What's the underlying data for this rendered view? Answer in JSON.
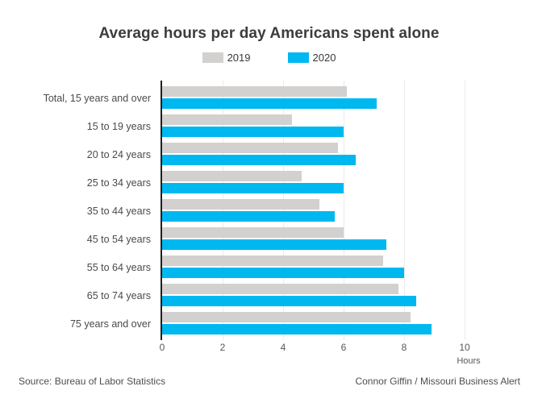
{
  "title": "Average hours per day Americans spent alone",
  "legend": {
    "items": [
      {
        "label": "2019",
        "color": "#d3d1cf"
      },
      {
        "label": "2020",
        "color": "#00b8f0"
      }
    ]
  },
  "footer": {
    "source": "Source: Bureau of Labor Statistics",
    "credit": "Connor Giffin / Missouri Business Alert"
  },
  "colors": {
    "bar_2019": "#d3d1cf",
    "bar_2020": "#00b8f0",
    "axis": "#1f1f1f",
    "gridline": "#ebebeb"
  },
  "chart_data": {
    "type": "bar",
    "orientation": "horizontal",
    "title": "Average hours per day Americans spent alone",
    "categories": [
      "Total, 15 years and over",
      "15 to 19 years",
      "20 to 24 years",
      "25 to 34 years",
      "35 to 44 years",
      "45 to 54 years",
      "55 to 64 years",
      "65 to 74 years",
      "75 years and over"
    ],
    "series": [
      {
        "name": "2019",
        "color": "#d3d1cf",
        "values": [
          6.1,
          4.3,
          5.8,
          4.6,
          5.2,
          6.0,
          7.3,
          7.8,
          8.2
        ]
      },
      {
        "name": "2020",
        "color": "#00b8f0",
        "values": [
          7.1,
          6.0,
          6.4,
          6.0,
          5.7,
          7.4,
          8.0,
          8.4,
          8.9
        ]
      }
    ],
    "xlabel": "Hours",
    "xticks": [
      0,
      2,
      4,
      6,
      8,
      10
    ],
    "xlim": [
      0,
      11.4
    ],
    "grid": "vertical",
    "legend_position": "top"
  }
}
